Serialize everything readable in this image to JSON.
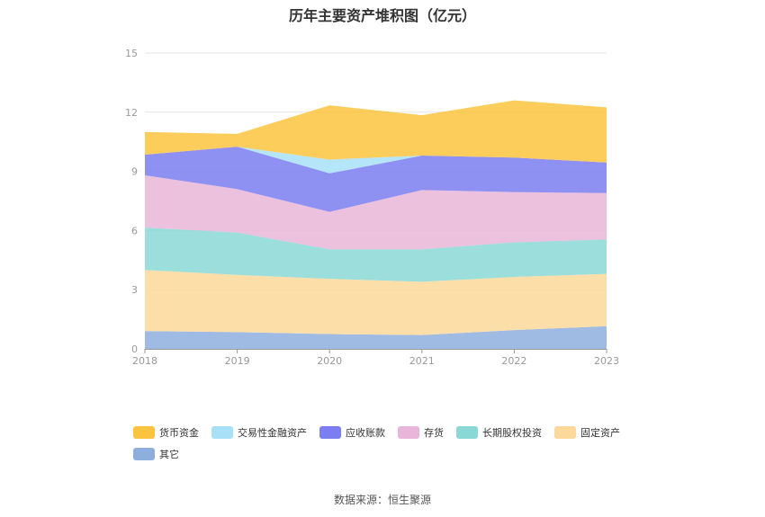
{
  "title": "历年主要资产堆积图（亿元）",
  "source": "数据来源：恒生聚源",
  "chart_data": {
    "type": "area",
    "stacked": true,
    "categories": [
      "2018",
      "2019",
      "2020",
      "2021",
      "2022",
      "2023"
    ],
    "ylim": [
      0,
      15
    ],
    "yticks": [
      "0",
      "3",
      "6",
      "9",
      "12",
      "15"
    ],
    "grid": true,
    "legend_position": "bottom",
    "series": [
      {
        "name": "其它",
        "color": "#8eaede",
        "values": [
          0.9,
          0.85,
          0.75,
          0.7,
          0.95,
          1.15
        ]
      },
      {
        "name": "固定资产",
        "color": "#fcd89a",
        "values": [
          3.1,
          2.9,
          2.8,
          2.7,
          2.7,
          2.65
        ]
      },
      {
        "name": "长期股权投资",
        "color": "#8ad8d6",
        "values": [
          2.15,
          2.15,
          1.5,
          1.65,
          1.75,
          1.75
        ]
      },
      {
        "name": "存货",
        "color": "#e8b6d8",
        "values": [
          2.65,
          2.2,
          1.9,
          3.0,
          2.55,
          2.35
        ]
      },
      {
        "name": "应收账款",
        "color": "#7b7ef0",
        "values": [
          1.05,
          2.15,
          1.95,
          1.75,
          1.75,
          1.55
        ]
      },
      {
        "name": "交易性金融资产",
        "color": "#a8e0f8",
        "values": [
          0.0,
          0.0,
          0.7,
          0.0,
          0.0,
          0.0
        ]
      },
      {
        "name": "货币资金",
        "color": "#fcc43e",
        "values": [
          1.15,
          0.65,
          2.75,
          2.05,
          2.9,
          2.8
        ]
      }
    ]
  },
  "legend": [
    {
      "label": "货币资金",
      "color": "#fcc43e"
    },
    {
      "label": "交易性金融资产",
      "color": "#a8e0f8"
    },
    {
      "label": "应收账款",
      "color": "#7b7ef0"
    },
    {
      "label": "存货",
      "color": "#e8b6d8"
    },
    {
      "label": "长期股权投资",
      "color": "#8ad8d6"
    },
    {
      "label": "固定资产",
      "color": "#fcd89a"
    },
    {
      "label": "其它",
      "color": "#8eaede"
    }
  ]
}
